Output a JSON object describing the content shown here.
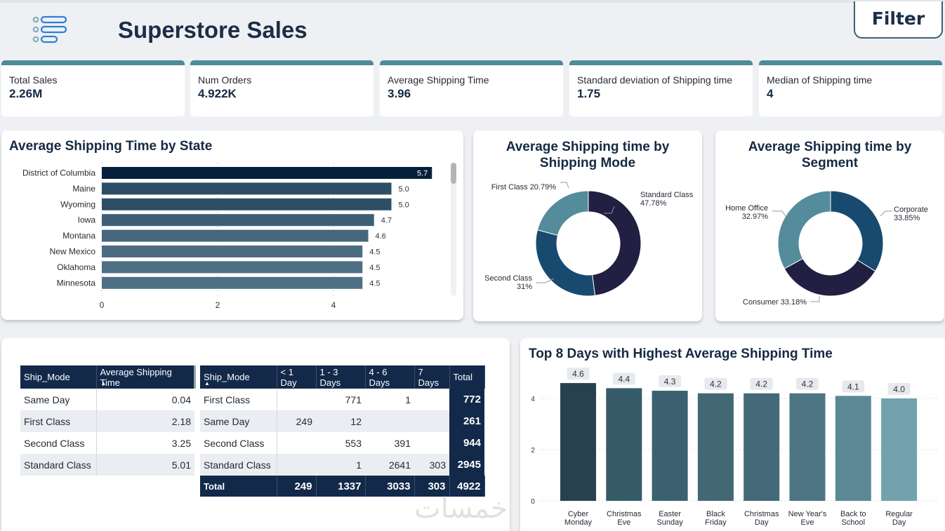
{
  "header": {
    "title": "Superstore Sales",
    "filter_label": "Filter",
    "logo_icon": "list-icon"
  },
  "kpis": [
    {
      "label": "Total Sales",
      "value": "2.26M"
    },
    {
      "label": "Num Orders",
      "value": "4.922K"
    },
    {
      "label": "Average Shipping Time",
      "value": "3.96"
    },
    {
      "label": "Standard deviation of Shipping time",
      "value": "1.75"
    },
    {
      "label": "Median of Shipping time",
      "value": "4"
    }
  ],
  "colors": {
    "navy": "#12294a",
    "kpi_accent": "#4e8a99",
    "title": "#152a42"
  },
  "state_chart": {
    "title": "Average Shipping Time by State"
  },
  "mode_chart": {
    "title_line1": "Average Shipping time by",
    "title_line2": "Shipping Mode"
  },
  "segment_chart": {
    "title_line1": "Average Shipping time by",
    "title_line2": "Segment"
  },
  "days_chart": {
    "title": "Top 8 Days with Highest Average Shipping Time"
  },
  "table1": {
    "headers": [
      "Ship_Mode",
      "Average Shipping Time"
    ],
    "rows": [
      [
        "Same Day",
        "0.04"
      ],
      [
        "First Class",
        "2.18"
      ],
      [
        "Second Class",
        "3.25"
      ],
      [
        "Standard Class",
        "5.01"
      ]
    ]
  },
  "table2": {
    "headers": [
      "Ship_Mode",
      "< 1 Day",
      "1 - 3 Days",
      "4 - 6 Days",
      "7 Days",
      "Total"
    ],
    "rows": [
      [
        "First Class",
        "",
        "771",
        "1",
        "",
        "772"
      ],
      [
        "Same Day",
        "249",
        "12",
        "",
        "",
        "261"
      ],
      [
        "Second Class",
        "",
        "553",
        "391",
        "",
        "944"
      ],
      [
        "Standard Class",
        "",
        "1",
        "2641",
        "303",
        "2945"
      ]
    ],
    "total_row": [
      "Total",
      "249",
      "1337",
      "3033",
      "303",
      "4922"
    ]
  },
  "watermark": "خمسات",
  "chart_data": [
    {
      "type": "bar",
      "orientation": "horizontal",
      "title": "Average Shipping Time by State",
      "categories": [
        "District of Columbia",
        "Maine",
        "Wyoming",
        "Iowa",
        "Montana",
        "New Mexico",
        "Oklahoma",
        "Minnesota"
      ],
      "values": [
        5.7,
        5.0,
        5.0,
        4.7,
        4.6,
        4.5,
        4.5,
        4.5
      ],
      "data_labels": [
        "5.7",
        "5.0",
        "5.0",
        "4.7",
        "4.6",
        "4.5",
        "4.5",
        "4.5"
      ],
      "colors": [
        "#05203a",
        "#2d4f66",
        "#2d4f66",
        "#3d6075",
        "#45677c",
        "#4a6d82",
        "#4d7085",
        "#4d7085"
      ],
      "xticks": [
        0,
        2,
        4
      ],
      "xlim": [
        0,
        6.1
      ],
      "grid": true
    },
    {
      "type": "pie",
      "donut": true,
      "title": "Average Shipping time by Shipping Mode",
      "labels": [
        "Standard Class",
        "Second Class",
        "First Class"
      ],
      "values": [
        47.78,
        31,
        20.79
      ],
      "data_labels": [
        "47.78%",
        "31%",
        "20.79%"
      ],
      "colors": [
        "#211f42",
        "#174a6e",
        "#548c9c"
      ]
    },
    {
      "type": "pie",
      "donut": true,
      "title": "Average Shipping time by Segment",
      "labels": [
        "Corporate",
        "Consumer",
        "Home Office"
      ],
      "values": [
        33.85,
        33.18,
        32.97
      ],
      "data_labels": [
        "33.85%",
        "33.18%",
        "32.97%"
      ],
      "colors": [
        "#174a6e",
        "#211f42",
        "#548c9c"
      ]
    },
    {
      "type": "bar",
      "title": "Top 8 Days with Highest Average Shipping Time",
      "categories": [
        "Cyber Monday",
        "Christmas Eve",
        "Easter Sunday",
        "Black Friday",
        "Christmas Day",
        "New Year's Eve",
        "Back to School",
        "Regular Day"
      ],
      "category_lines": [
        [
          "Cyber",
          "Monday"
        ],
        [
          "Christmas",
          "Eve"
        ],
        [
          "Easter",
          "Sunday"
        ],
        [
          "Black",
          "Friday"
        ],
        [
          "Christmas",
          "Day"
        ],
        [
          "New Year's",
          "Eve"
        ],
        [
          "Back to",
          "School"
        ],
        [
          "Regular",
          "Day"
        ]
      ],
      "values": [
        4.6,
        4.4,
        4.3,
        4.2,
        4.2,
        4.2,
        4.1,
        4.0
      ],
      "data_labels": [
        "4.6",
        "4.4",
        "4.3",
        "4.2",
        "4.2",
        "4.2",
        "4.1",
        "4.0"
      ],
      "colors": [
        "#27414f",
        "#355b68",
        "#3b6170",
        "#426876",
        "#446a79",
        "#4d7584",
        "#5b8894",
        "#72a2ad"
      ],
      "yticks": [
        0,
        2,
        4
      ],
      "ylim": [
        0,
        4.6
      ],
      "grid": true
    }
  ]
}
